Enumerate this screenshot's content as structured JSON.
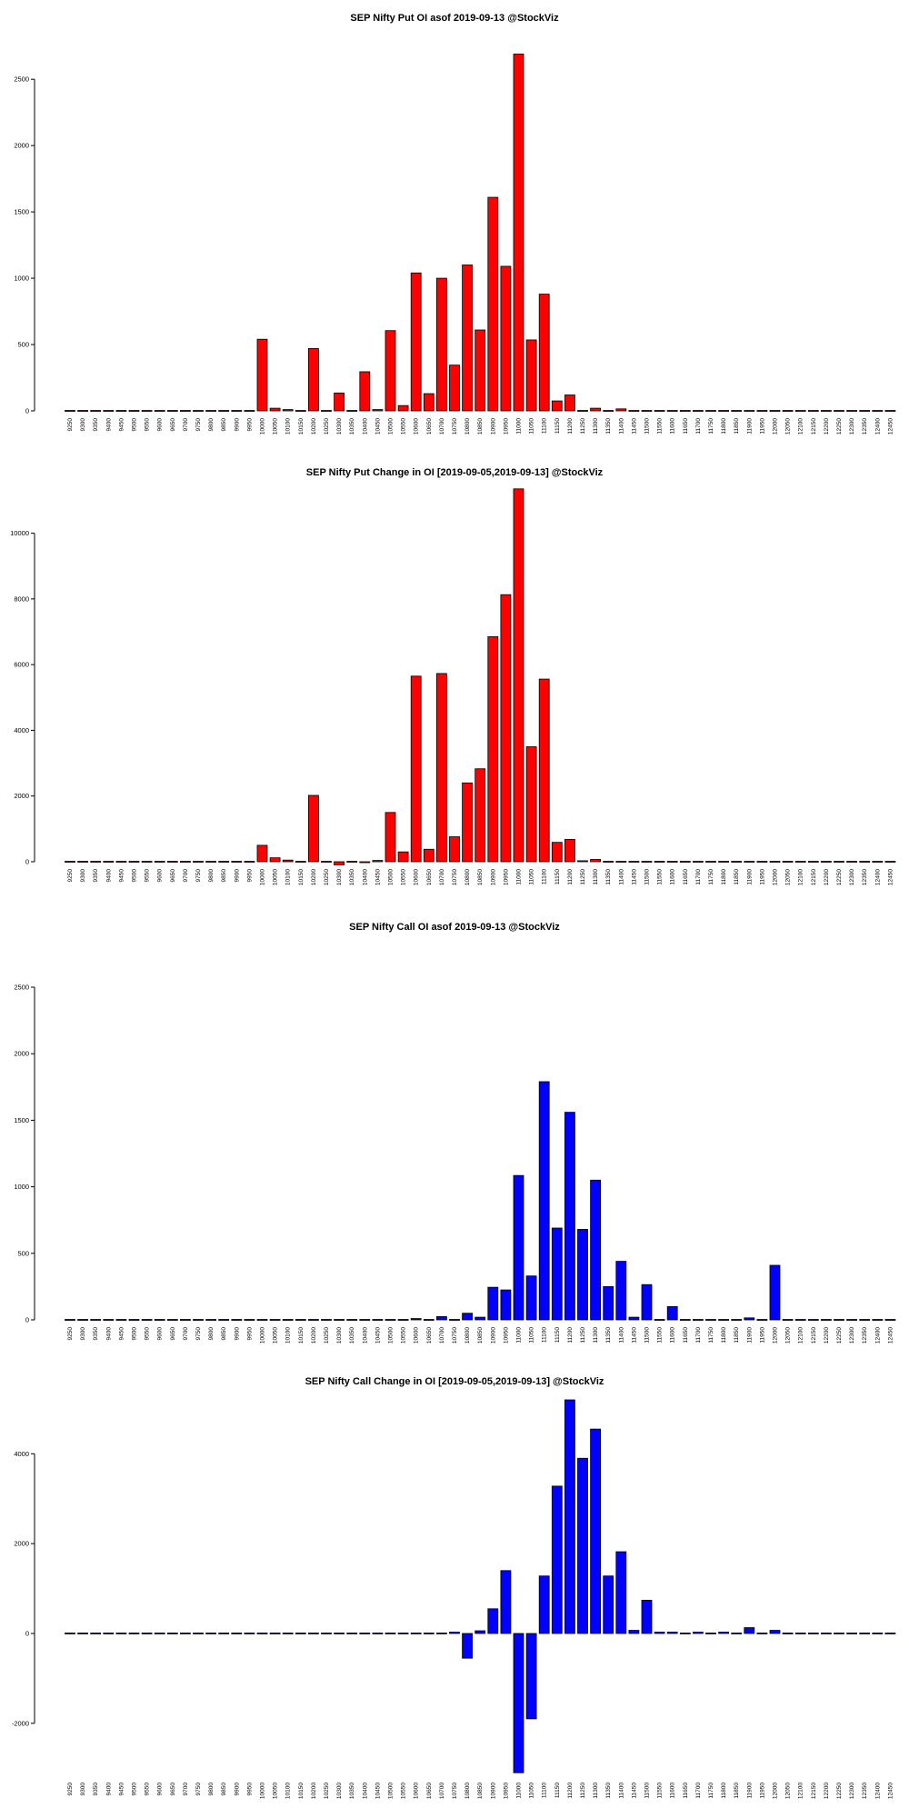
{
  "chart_data": [
    {
      "type": "bar",
      "title": "SEP Nifty Put OI asof 2019-09-13 @StockViz",
      "color": "#ff0000",
      "categories": [
        "9250",
        "9300",
        "9350",
        "9400",
        "9450",
        "9500",
        "9550",
        "9600",
        "9650",
        "9700",
        "9750",
        "9800",
        "9850",
        "9900",
        "9950",
        "10000",
        "10050",
        "10100",
        "10150",
        "10200",
        "10250",
        "10300",
        "10350",
        "10400",
        "10450",
        "10500",
        "10550",
        "10600",
        "10650",
        "10700",
        "10750",
        "10800",
        "10850",
        "10900",
        "10950",
        "11000",
        "11050",
        "11100",
        "11150",
        "11200",
        "11250",
        "11300",
        "11350",
        "11400",
        "11450",
        "11500",
        "11550",
        "11600",
        "11650",
        "11700",
        "11750",
        "11800",
        "11850",
        "11900",
        "11950",
        "12000",
        "12050",
        "12100",
        "12150",
        "12200",
        "12250",
        "12300",
        "12350",
        "12400",
        "12450"
      ],
      "values": [
        0,
        0,
        0,
        0,
        0,
        0,
        0,
        0,
        0,
        0,
        0,
        0,
        0,
        0,
        0,
        540,
        20,
        10,
        0,
        470,
        0,
        135,
        0,
        295,
        10,
        605,
        40,
        1040,
        130,
        1000,
        345,
        1100,
        610,
        1610,
        1090,
        2690,
        535,
        880,
        75,
        120,
        5,
        20,
        5,
        15,
        0,
        0,
        0,
        0,
        0,
        0,
        0,
        0,
        0,
        0,
        0,
        0,
        0,
        0,
        0,
        0,
        0,
        0,
        0,
        0,
        0
      ],
      "yticks": [
        0,
        500,
        1000,
        1500,
        2000,
        2500
      ],
      "ylim": [
        0,
        2700
      ]
    },
    {
      "type": "bar",
      "title": "SEP Nifty Put Change in OI [2019-09-05,2019-09-13] @StockViz",
      "color": "#ff0000",
      "categories": [
        "9250",
        "9300",
        "9350",
        "9400",
        "9450",
        "9500",
        "9550",
        "9600",
        "9650",
        "9700",
        "9750",
        "9800",
        "9850",
        "9900",
        "9950",
        "10000",
        "10050",
        "10100",
        "10150",
        "10200",
        "10250",
        "10300",
        "10350",
        "10400",
        "10450",
        "10500",
        "10550",
        "10600",
        "10650",
        "10700",
        "10750",
        "10800",
        "10850",
        "10900",
        "10950",
        "11000",
        "11050",
        "11100",
        "11150",
        "11200",
        "11250",
        "11300",
        "11350",
        "11400",
        "11450",
        "11500",
        "11550",
        "11600",
        "11650",
        "11700",
        "11750",
        "11800",
        "11850",
        "11900",
        "11950",
        "12000",
        "12050",
        "12100",
        "12150",
        "12200",
        "12250",
        "12300",
        "12350",
        "12400",
        "12450"
      ],
      "values": [
        0,
        0,
        0,
        0,
        0,
        0,
        0,
        0,
        0,
        0,
        0,
        0,
        0,
        0,
        20,
        500,
        120,
        50,
        10,
        2020,
        10,
        -100,
        20,
        -20,
        40,
        1500,
        300,
        5650,
        380,
        5730,
        760,
        2400,
        2830,
        6850,
        8130,
        11350,
        3500,
        5560,
        590,
        680,
        30,
        70,
        10,
        0,
        0,
        0,
        0,
        0,
        0,
        0,
        0,
        0,
        0,
        0,
        0,
        0,
        0,
        0,
        0,
        0,
        0,
        0,
        0,
        0,
        0
      ],
      "yticks": [
        0,
        2000,
        4000,
        6000,
        8000,
        10000
      ],
      "ylim": [
        -200,
        11400
      ]
    },
    {
      "type": "bar",
      "title": "SEP Nifty Call OI asof 2019-09-13 @StockViz",
      "color": "#0000ff",
      "categories": [
        "9250",
        "9300",
        "9350",
        "9400",
        "9450",
        "9500",
        "9550",
        "9600",
        "9650",
        "9700",
        "9750",
        "9800",
        "9850",
        "9900",
        "9950",
        "10000",
        "10050",
        "10100",
        "10150",
        "10200",
        "10250",
        "10300",
        "10350",
        "10400",
        "10450",
        "10500",
        "10550",
        "10600",
        "10650",
        "10700",
        "10750",
        "10800",
        "10850",
        "10900",
        "10950",
        "11000",
        "11050",
        "11100",
        "11150",
        "11200",
        "11250",
        "11300",
        "11350",
        "11400",
        "11450",
        "11500",
        "11550",
        "11600",
        "11650",
        "11700",
        "11750",
        "11800",
        "11850",
        "11900",
        "11950",
        "12000",
        "12050",
        "12100",
        "12150",
        "12200",
        "12250",
        "12300",
        "12350",
        "12400",
        "12450"
      ],
      "values": [
        0,
        0,
        0,
        0,
        0,
        0,
        0,
        0,
        0,
        0,
        0,
        0,
        0,
        0,
        0,
        0,
        0,
        0,
        0,
        0,
        0,
        0,
        0,
        0,
        0,
        0,
        0,
        10,
        5,
        25,
        5,
        50,
        20,
        245,
        225,
        1085,
        330,
        1790,
        690,
        1560,
        680,
        1050,
        250,
        440,
        20,
        265,
        5,
        100,
        0,
        5,
        0,
        5,
        0,
        15,
        0,
        410,
        0,
        0,
        0,
        0,
        0,
        0,
        0,
        0,
        0
      ],
      "yticks": [
        0,
        500,
        1000,
        1500,
        2000,
        2500
      ],
      "ylim": [
        0,
        2500
      ]
    },
    {
      "type": "bar",
      "title": "SEP Nifty Call Change in OI [2019-09-05,2019-09-13] @StockViz",
      "color": "#0000ff",
      "categories": [
        "9250",
        "9300",
        "9350",
        "9400",
        "9450",
        "9500",
        "9550",
        "9600",
        "9650",
        "9700",
        "9750",
        "9800",
        "9850",
        "9900",
        "9950",
        "10000",
        "10050",
        "10100",
        "10150",
        "10200",
        "10250",
        "10300",
        "10350",
        "10400",
        "10450",
        "10500",
        "10550",
        "10600",
        "10650",
        "10700",
        "10750",
        "10800",
        "10850",
        "10900",
        "10950",
        "11000",
        "11050",
        "11100",
        "11150",
        "11200",
        "11250",
        "11300",
        "11350",
        "11400",
        "11450",
        "11500",
        "11550",
        "11600",
        "11650",
        "11700",
        "11750",
        "11800",
        "11850",
        "11900",
        "11950",
        "12000",
        "12050",
        "12100",
        "12150",
        "12200",
        "12250",
        "12300",
        "12350",
        "12400",
        "12450"
      ],
      "values": [
        0,
        0,
        0,
        0,
        0,
        0,
        0,
        0,
        0,
        0,
        0,
        0,
        0,
        0,
        0,
        0,
        0,
        0,
        0,
        0,
        0,
        0,
        0,
        0,
        0,
        0,
        0,
        0,
        0,
        0,
        30,
        -550,
        60,
        550,
        1400,
        -3100,
        -1900,
        1280,
        3280,
        5200,
        3900,
        4550,
        1280,
        1820,
        70,
        740,
        30,
        30,
        0,
        30,
        0,
        30,
        0,
        130,
        10,
        70,
        0,
        0,
        0,
        0,
        0,
        0,
        0,
        0,
        0
      ],
      "yticks": [
        -2000,
        0,
        2000,
        4000
      ],
      "ylim": [
        -3100,
        5200
      ]
    }
  ]
}
